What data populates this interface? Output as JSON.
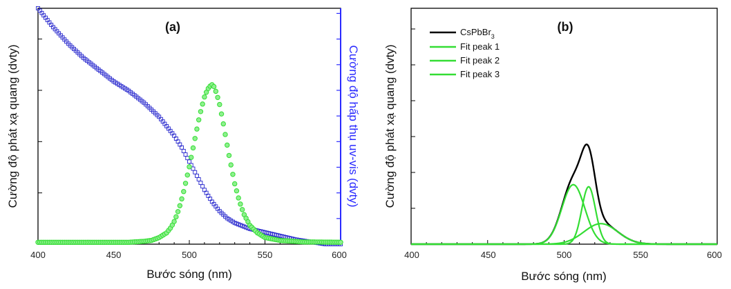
{
  "chart_data": [
    {
      "type": "scatter",
      "panel_label": "(a)",
      "xlabel": "Bước sóng (nm)",
      "ylabel_left": "Cường độ phát xạ quang (dvty)",
      "ylabel_right": "Cường độ hấp thụ uv-vis (dvty)",
      "xlim": [
        400,
        600
      ],
      "x_ticks": [
        "400",
        "450",
        "500",
        "550",
        "600"
      ],
      "left_ylim": [
        0,
        1.25
      ],
      "right_ylim": [
        0,
        1.0
      ],
      "y_tick_labels": "none",
      "colors": {
        "emission": "#33dd33",
        "absorption": "#2222cc",
        "right_axis": "#2a2aff"
      },
      "series": [
        {
          "role": "photoluminescence",
          "axis": "left",
          "marker": "circle",
          "x": [
            400,
            420,
            440,
            460,
            470,
            475,
            480,
            485,
            488,
            490,
            492,
            494,
            496,
            498,
            500,
            502,
            504,
            506,
            508,
            510,
            512,
            514,
            515,
            516,
            518,
            520,
            522,
            524,
            526,
            528,
            530,
            533,
            536,
            540,
            545,
            550,
            560,
            575,
            600
          ],
          "y": [
            0.01,
            0.01,
            0.01,
            0.01,
            0.015,
            0.02,
            0.035,
            0.06,
            0.09,
            0.12,
            0.16,
            0.21,
            0.27,
            0.34,
            0.41,
            0.49,
            0.57,
            0.65,
            0.72,
            0.78,
            0.82,
            0.84,
            0.845,
            0.84,
            0.8,
            0.74,
            0.66,
            0.57,
            0.48,
            0.4,
            0.32,
            0.23,
            0.16,
            0.1,
            0.06,
            0.035,
            0.02,
            0.012,
            0.01
          ]
        },
        {
          "role": "absorbance",
          "axis": "right",
          "marker": "open-square",
          "x": [
            400,
            410,
            420,
            430,
            440,
            450,
            460,
            470,
            480,
            490,
            495,
            500,
            505,
            510,
            515,
            520,
            525,
            530,
            540,
            550,
            560,
            570,
            580,
            590,
            600
          ],
          "y": [
            1.0,
            0.92,
            0.85,
            0.79,
            0.74,
            0.69,
            0.65,
            0.6,
            0.54,
            0.46,
            0.41,
            0.35,
            0.29,
            0.23,
            0.18,
            0.14,
            0.11,
            0.09,
            0.065,
            0.05,
            0.035,
            0.02,
            0.01,
            0.0,
            0.0
          ]
        }
      ]
    },
    {
      "type": "line",
      "panel_label": "(b)",
      "xlabel": "Bước sóng (nm)",
      "ylabel": "Cường độ phát xạ quang (dvty)",
      "xlim": [
        400,
        600
      ],
      "ylim": [
        0,
        1.15
      ],
      "x_ticks": [
        "400",
        "450",
        "500",
        "550",
        "600"
      ],
      "y_tick_labels": "none",
      "legend": "top-left",
      "colors": {
        "CsPbBr3": "#000000",
        "fit": "#33dd33"
      },
      "series": [
        {
          "name": "CsPbBr",
          "name_sub": "3",
          "color": "#000000",
          "center": 515,
          "amplitude": 0.4,
          "sigma": 8.5
        },
        {
          "name": "Fit peak 1",
          "color": "#33dd33",
          "center": 506,
          "amplitude": 0.29,
          "sigma": 7.5
        },
        {
          "name": "Fit peak 2",
          "color": "#33dd33",
          "center": 516,
          "amplitude": 0.28,
          "sigma": 4.5
        },
        {
          "name": "Fit peak 3",
          "color": "#33dd33",
          "center": 524,
          "amplitude": 0.1,
          "sigma": 11
        }
      ]
    }
  ]
}
